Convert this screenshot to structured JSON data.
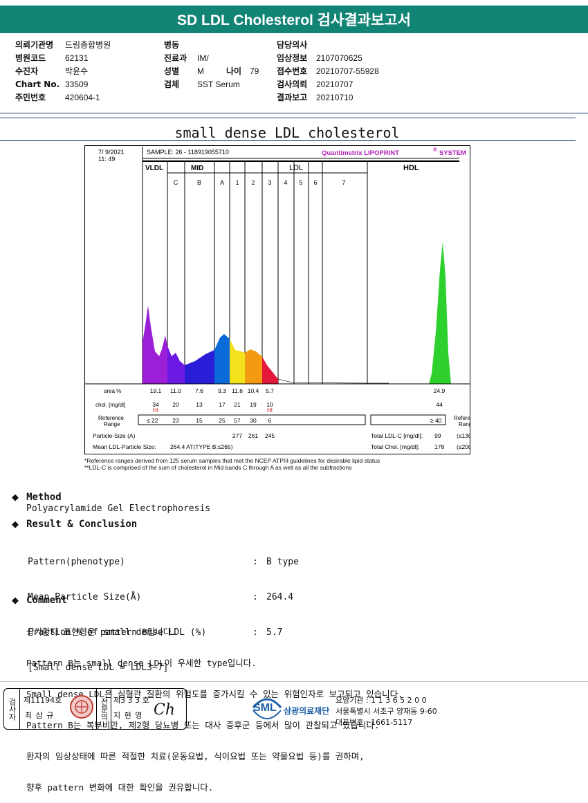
{
  "header": {
    "title": "SD LDL Cholesterol 검사결과보고서"
  },
  "info": {
    "col1": [
      {
        "label": "의뢰기관명",
        "value": "드림종합병원"
      },
      {
        "label": "병원코드",
        "value": "62131"
      },
      {
        "label": "수진자",
        "value": "박윤수"
      },
      {
        "label": "Chart No.",
        "value": "33509"
      },
      {
        "label": "주민번호",
        "value": "420604-1"
      }
    ],
    "col2": [
      {
        "label": "병동",
        "value": ""
      },
      {
        "label": "진료과",
        "value": "IM/"
      },
      {
        "label": "성별",
        "value": "M"
      },
      {
        "label": "검체",
        "value": "SST Serum"
      }
    ],
    "age": {
      "label": "나이",
      "value": "79"
    },
    "col3": [
      {
        "label": "담당의사",
        "value": ""
      },
      {
        "label": "입상정보",
        "value": "2107070625"
      },
      {
        "label": "접수번호",
        "value": "20210707-55928"
      },
      {
        "label": "검사의뢰",
        "value": "20210707"
      },
      {
        "label": "결과보고",
        "value": "20210710"
      }
    ]
  },
  "section": {
    "title": "small dense LDL cholesterol"
  },
  "chart": {
    "date": "7/  9/2021",
    "time": "11: 49",
    "sample": "SAMPLE:   26 - 118919055710",
    "brand": "Quantimetrix LIPOPRINT",
    "brand_sup": "®",
    "brand_tail": "SYSTEM",
    "groups": {
      "vldl": "VLDL",
      "mid": "MID",
      "ldl": "LDL",
      "hdl": "HDL"
    },
    "bands": [
      "C",
      "B",
      "A",
      "1",
      "2",
      "3",
      "4",
      "5",
      "6",
      "7"
    ],
    "row_labels": {
      "area": "area %",
      "chol": "chol. [mg/dl]",
      "ref": "Reference",
      "ref2": "Range",
      "ref_right": "Reference",
      "ref_right2": "Range"
    },
    "area_values": [
      "19.1",
      "11.0",
      "7.6",
      "9.3",
      "11.6",
      "10.4",
      "5.7"
    ],
    "hdl_area": "24.9",
    "chol_values": [
      "34",
      "20",
      "13",
      "17",
      "21",
      "19",
      "10"
    ],
    "hdl_chol": "44",
    "hi_vldl": "HI",
    "hi_ldl3": "HI",
    "ref_values": [
      "≤  22",
      "23",
      "15",
      "25",
      "57",
      "30",
      "6"
    ],
    "hdl_ref": "≥  40",
    "particle_label": "Particle-Size (A)",
    "particle_values": [
      "277",
      "261",
      "245"
    ],
    "mean_label": "Mean LDL-Particle Size:",
    "mean_value": "264.4  AT(TYPE B;≤265)",
    "total_ldl_label": "Total LDL-C [mg/dl]:",
    "total_ldl_value": "99",
    "total_ldl_ref": "(≤130)",
    "total_chol_label": "Total Chol. [mg/dl]:",
    "total_chol_value": "178",
    "total_chol_ref": "(≤200)"
  },
  "chart_data": {
    "type": "area",
    "title": "small dense LDL cholesterol",
    "categories": [
      "VLDL",
      "C",
      "B",
      "A",
      "1",
      "2",
      "3",
      "4",
      "5",
      "6",
      "7",
      "HDL"
    ],
    "series": [
      {
        "name": "area %",
        "values": [
          19.1,
          11.0,
          7.6,
          9.3,
          11.6,
          10.4,
          5.7,
          null,
          null,
          null,
          null,
          24.9
        ]
      },
      {
        "name": "chol. [mg/dl]",
        "values": [
          34,
          20,
          13,
          17,
          21,
          19,
          10,
          null,
          null,
          null,
          null,
          44
        ]
      }
    ],
    "band_colors": [
      "#9b1fd6",
      "#6a18e2",
      "#2a1dd8",
      "#0a6ad8",
      "#f2e11b",
      "#f39a12",
      "#e3183a",
      "#d0d0d0",
      "#d0d0d0",
      "#d0d0d0",
      "#d0d0d0",
      "#2dd02d"
    ]
  },
  "footnotes": [
    "*Reference ranges derived from 125 serum samples that met the NCEP ATPIII guidelines for desirable lipid status",
    "**LDL-C is comprised of the sum of cholesterol in Mid bands C through A as well as all the subfractions"
  ],
  "method": {
    "title": "Method",
    "text": "Polyacrylamide Gel Electrophoresis"
  },
  "result": {
    "title": "Result & Conclusion",
    "rows": [
      {
        "label": "Pattern(phenotype)",
        "value": "B type"
      },
      {
        "label": "Mean Particle Size(Å)",
        "value": "264.4"
      },
      {
        "label": "Fraction % of small dense LDL (%)",
        "value": "5.7"
      }
    ],
    "note": "[Small dense LDL = LDL3~7]"
  },
  "comment": {
    "title": "Comment",
    "lines": [
      "상기환자 표현형은 pattern B입니다.",
      "Pattern B는 small dense LDL이 우세한 type입니다.",
      "Small dense LDL은 심혈관 질환의 위험도를 증가시킬 수 있는 위험인자로 보고되고 있습니다.",
      "Pattern B는 복부비만, 제2형 당뇨병 또는 대사 증후군 등에서 많이 관찰되고 있습니다.",
      "환자의 임상상태에 따른 적절한 치료(운동요법, 식이요법 또는 약물요법 등)를 권하며,",
      "향후 pattern 변화에 대한 확인을 권유합니다."
    ]
  },
  "footer": {
    "exam_label": "검사자",
    "exam_no": "제11194호",
    "exam_name": "최 삼 규",
    "spec_label": "전문의",
    "spec_no": "제3 3 3 호",
    "spec_name": "지 현 영",
    "sig": "Ch",
    "logo": "SML",
    "org": "삼광의료재단",
    "lines": [
      "요양기관 : 1 1 3 6 5 2 0 0",
      "서울특별시 서초구 양재동 9-60",
      "대표번호 : 1661-5117"
    ]
  }
}
